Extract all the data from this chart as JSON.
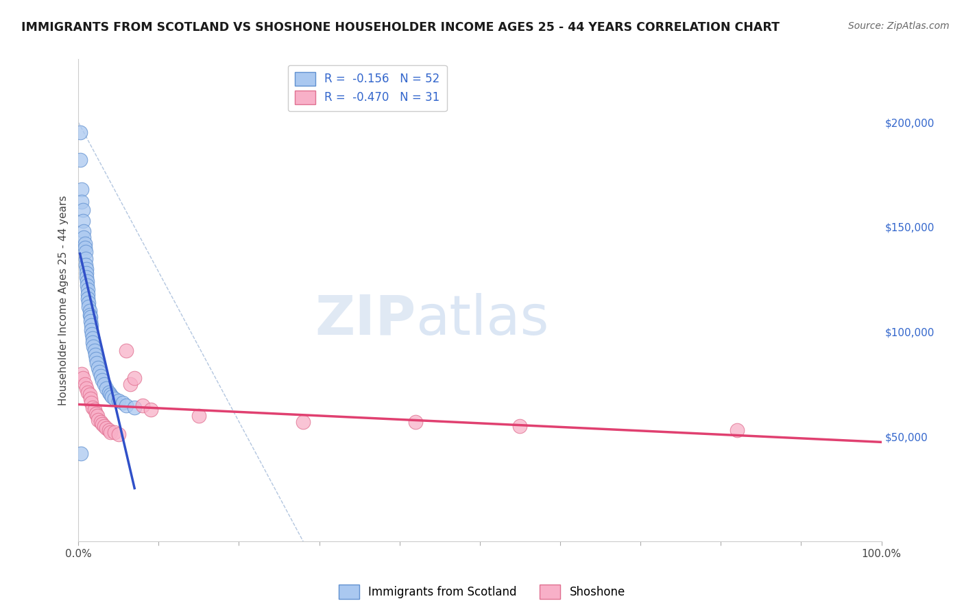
{
  "title": "IMMIGRANTS FROM SCOTLAND VS SHOSHONE HOUSEHOLDER INCOME AGES 25 - 44 YEARS CORRELATION CHART",
  "source": "Source: ZipAtlas.com",
  "ylabel": "Householder Income Ages 25 - 44 years",
  "xlim": [
    0.0,
    1.0
  ],
  "ylim": [
    0,
    230000
  ],
  "ytick_positions": [
    50000,
    100000,
    150000,
    200000
  ],
  "ytick_labels": [
    "$50,000",
    "$100,000",
    "$150,000",
    "$200,000"
  ],
  "legend_r1": "R =  -0.156   N = 52",
  "legend_r2": "R =  -0.470   N = 31",
  "watermark_zip": "ZIP",
  "watermark_atlas": "atlas",
  "background_color": "#ffffff",
  "grid_color": "#d8dde8",
  "scatter_scotland_fill": "#aac8f0",
  "scatter_scotland_edge": "#6090d0",
  "scatter_shoshone_fill": "#f8b0c8",
  "scatter_shoshone_edge": "#e07090",
  "scotland_line_color": "#3050c8",
  "shoshone_line_color": "#e04070",
  "dashed_line_color": "#a0b8d8",
  "scotland_x": [
    0.002,
    0.002,
    0.004,
    0.004,
    0.006,
    0.006,
    0.007,
    0.007,
    0.008,
    0.008,
    0.009,
    0.009,
    0.009,
    0.01,
    0.01,
    0.01,
    0.011,
    0.011,
    0.012,
    0.012,
    0.012,
    0.013,
    0.013,
    0.014,
    0.014,
    0.015,
    0.015,
    0.016,
    0.016,
    0.017,
    0.018,
    0.018,
    0.019,
    0.02,
    0.021,
    0.022,
    0.023,
    0.025,
    0.026,
    0.028,
    0.03,
    0.032,
    0.035,
    0.038,
    0.04,
    0.042,
    0.045,
    0.05,
    0.055,
    0.06,
    0.07,
    0.003
  ],
  "scotland_y": [
    195000,
    182000,
    168000,
    162000,
    158000,
    153000,
    148000,
    145000,
    142000,
    140000,
    138000,
    135000,
    132000,
    130000,
    128000,
    126000,
    124000,
    122000,
    120000,
    118000,
    116000,
    114000,
    112000,
    110000,
    108000,
    107000,
    105000,
    103000,
    101000,
    99000,
    97000,
    95000,
    93000,
    91000,
    89000,
    87000,
    85000,
    83000,
    81000,
    79000,
    77000,
    75000,
    73000,
    71000,
    70000,
    69000,
    68000,
    67000,
    66000,
    65000,
    64000,
    42000
  ],
  "shoshone_x": [
    0.004,
    0.006,
    0.008,
    0.01,
    0.012,
    0.014,
    0.015,
    0.016,
    0.018,
    0.02,
    0.022,
    0.024,
    0.025,
    0.028,
    0.03,
    0.032,
    0.035,
    0.038,
    0.04,
    0.045,
    0.05,
    0.06,
    0.065,
    0.07,
    0.08,
    0.09,
    0.15,
    0.28,
    0.42,
    0.55,
    0.82
  ],
  "shoshone_y": [
    80000,
    78000,
    75000,
    73000,
    71000,
    70000,
    68000,
    66000,
    64000,
    63000,
    61000,
    60000,
    58000,
    57000,
    56000,
    55000,
    54000,
    53000,
    52000,
    52000,
    51000,
    91000,
    75000,
    78000,
    65000,
    63000,
    60000,
    57000,
    57000,
    55000,
    53000
  ]
}
